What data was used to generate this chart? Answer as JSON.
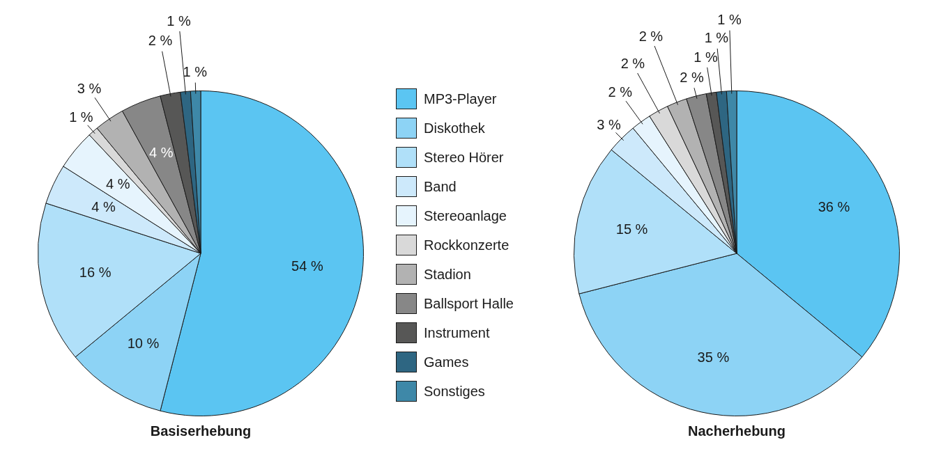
{
  "chart_data": [
    {
      "type": "pie",
      "title": "Basiserhebung",
      "legend": "right",
      "categories": [
        "MP3-Player",
        "Diskothek",
        "Stereo Hörer",
        "Band",
        "Stereoanlage",
        "Rockkonzerte",
        "Stadion",
        "Ballsport Halle",
        "Instrument",
        "Games",
        "Sonstiges"
      ],
      "values": [
        54,
        10,
        16,
        4,
        4,
        1,
        3,
        4,
        2,
        1,
        1
      ],
      "value_labels": [
        "54 %",
        "10 %",
        "16 %",
        "4 %",
        "4 %",
        "1 %",
        "3 %",
        "4 %",
        "2 %",
        "1 %",
        "1 %"
      ],
      "colors": [
        "#5bc5f2",
        "#8dd3f5",
        "#b0e0f9",
        "#cde9fb",
        "#e6f4fd",
        "#d9d9d9",
        "#b2b2b2",
        "#878787",
        "#575756",
        "#2e6682",
        "#3e88a8"
      ]
    },
    {
      "type": "pie",
      "title": "Nacherhebung",
      "categories": [
        null,
        null,
        null,
        null,
        null,
        null,
        null,
        null,
        null,
        null,
        null
      ],
      "values": [
        36,
        35,
        15,
        3,
        2,
        2,
        2,
        2,
        1,
        1,
        1
      ],
      "value_labels": [
        "36 %",
        "35 %",
        "15 %",
        "3 %",
        "2 %",
        "2 %",
        "2 %",
        "2 %",
        "1 %",
        "1 %",
        "1 %"
      ],
      "colors": [
        "#5bc5f2",
        "#8dd3f5",
        "#b0e0f9",
        "#cde9fb",
        "#e6f4fd",
        "#d9d9d9",
        "#b2b2b2",
        "#878787",
        "#575756",
        "#2e6682",
        "#3e88a8"
      ]
    }
  ]
}
